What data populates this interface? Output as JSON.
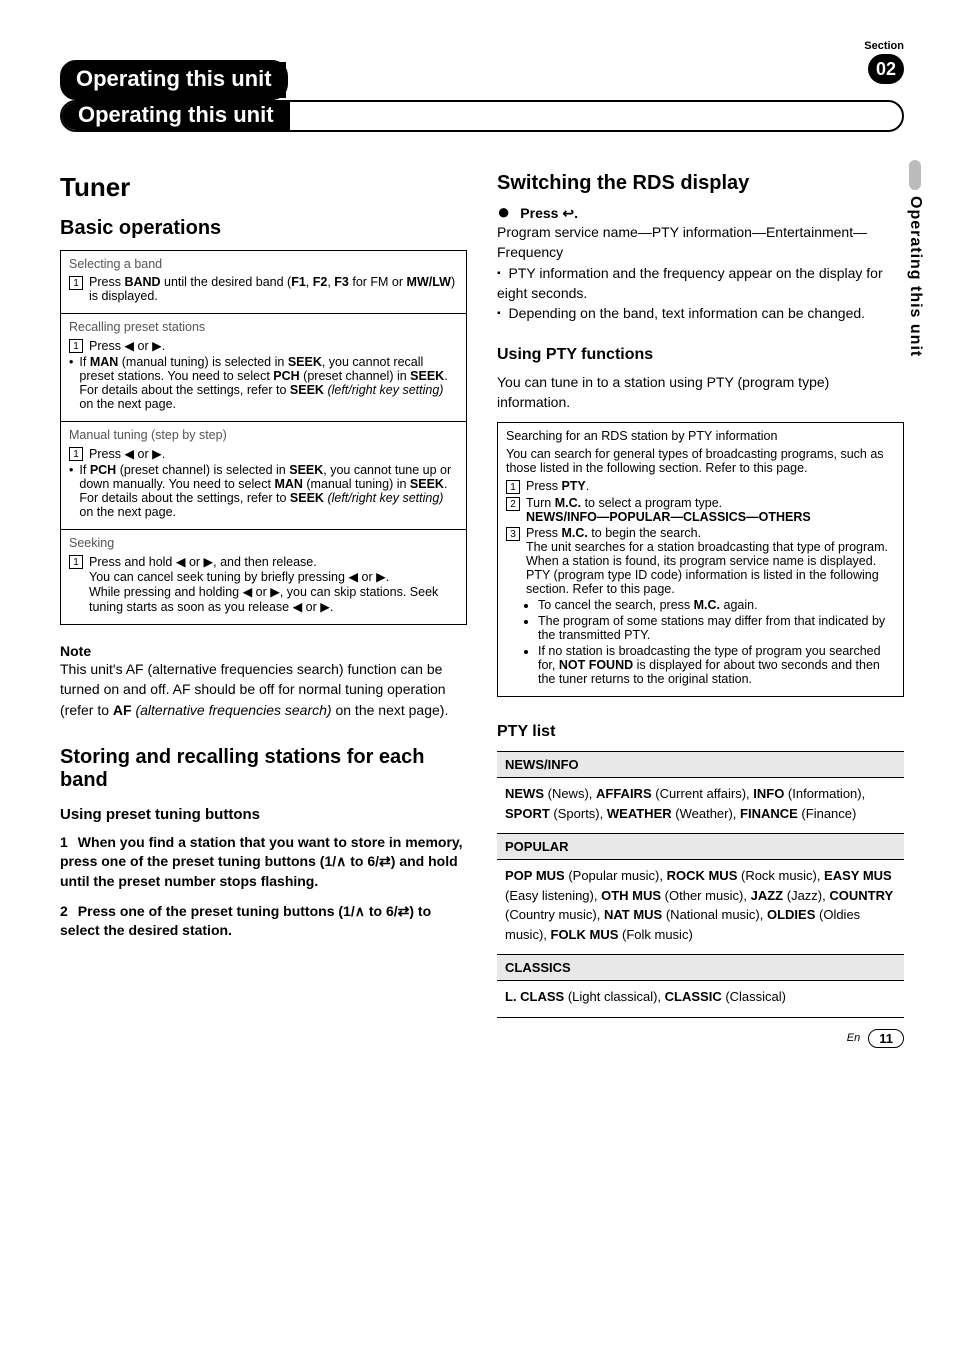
{
  "meta": {
    "section_label": "Section",
    "section_number": "02",
    "chapter_title": "Operating this unit",
    "side_tab": "Operating this unit",
    "page_lang": "En",
    "page_number": "11"
  },
  "left": {
    "h1": "Tuner",
    "h2_basic": "Basic operations",
    "rows": {
      "r1_title": "Selecting a band",
      "r1_step1_a": "Press ",
      "r1_step1_b": "BAND",
      "r1_step1_c": " until the desired band (",
      "r1_step1_d": "F1",
      "r1_step1_e": ", ",
      "r1_step1_f": "F2",
      "r1_step1_g": ", ",
      "r1_step1_h": "F3",
      "r1_step1_i": " for FM or ",
      "r1_step1_j": "MW/LW",
      "r1_step1_k": ") is displayed.",
      "r2_title": "Recalling preset stations",
      "r2_step1": "Press ◀ or ▶.",
      "r2_b1_a": "If ",
      "r2_b1_b": "MAN",
      "r2_b1_c": " (manual tuning) is selected in ",
      "r2_b1_d": "SEEK",
      "r2_b1_e": ", you cannot recall preset stations. You need to select ",
      "r2_b1_f": "PCH",
      "r2_b1_g": " (preset channel) in ",
      "r2_b1_h": "SEEK",
      "r2_b1_i": ". For details about the settings, refer to ",
      "r2_b1_j": "SEEK",
      "r2_b1_k": " (left/right key setting)",
      "r2_b1_l": " on the next page.",
      "r3_title": "Manual tuning (step by step)",
      "r3_step1": "Press ◀ or ▶.",
      "r3_b1_a": "If ",
      "r3_b1_b": "PCH",
      "r3_b1_c": " (preset channel) is selected in ",
      "r3_b1_d": "SEEK",
      "r3_b1_e": ", you cannot tune up or down manually. You need to select ",
      "r3_b1_f": "MAN",
      "r3_b1_g": " (manual tuning) in ",
      "r3_b1_h": "SEEK",
      "r3_b1_i": ". For details about the settings, refer to ",
      "r3_b1_j": "SEEK",
      "r3_b1_k": " (left/right key setting)",
      "r3_b1_l": " on the next page.",
      "r4_title": "Seeking",
      "r4_step1": "Press and hold ◀ or ▶, and then release.",
      "r4_line2": "You can cancel seek tuning by briefly pressing ◀ or ▶.",
      "r4_line3": "While pressing and holding ◀ or ▶, you can skip stations. Seek tuning starts as soon as you release ◀ or ▶."
    },
    "note_label": "Note",
    "note_a": "This unit's AF (alternative frequencies search) function can be turned on and off. AF should be off for normal tuning operation (refer to ",
    "note_b": "AF",
    "note_c": " (alternative frequencies search)",
    "note_d": " on the next page).",
    "h2_store": "Storing and recalling stations for each band",
    "h3_preset": "Using preset tuning buttons",
    "p1_n": "1",
    "p1_a": "When you find a station that you want to store in memory, press one of the preset tuning buttons (1/",
    "p1_b": " to 6/",
    "p1_c": ") and hold until the preset number stops flashing.",
    "p2_n": "2",
    "p2_a": "Press one of the preset tuning buttons (1/",
    "p2_b": " to 6/",
    "p2_c": ") to select the desired station."
  },
  "right": {
    "h2_rds": "Switching the RDS display",
    "act1_a": "Press ",
    "act1_b": ".",
    "line1": "Program service name—PTY information—Entertainment—Frequency",
    "sq1": "PTY information and the frequency appear on the display for eight seconds.",
    "sq2": "Depending on the band, text information can be changed.",
    "h3_pty": "Using PTY functions",
    "pty_intro": "You can tune in to a station using PTY (program type) information.",
    "box_title": "Searching for an RDS station by PTY information",
    "box_l1": "You can search for general types of broadcasting programs, such as those listed in the following section. Refer to this page.",
    "box_s1_a": "Press ",
    "box_s1_b": "PTY",
    "box_s1_c": ".",
    "box_s2_a": "Turn ",
    "box_s2_b": "M.C.",
    "box_s2_c": " to select a program type.",
    "box_s2_line": "NEWS/INFO—POPULAR—CLASSICS—OTHERS",
    "box_s3_a": "Press ",
    "box_s3_b": "M.C.",
    "box_s3_c": " to begin the search.",
    "box_s3_l1": "The unit searches for a station broadcasting that type of program. When a station is found, its program service name is displayed.",
    "box_s3_l2": "PTY (program type ID code) information is listed in the following section. Refer to this page.",
    "box_li1_a": "To cancel the search, press ",
    "box_li1_b": "M.C.",
    "box_li1_c": " again.",
    "box_li2": "The program of some stations may differ from that indicated by the transmitted PTY.",
    "box_li3_a": "If no station is broadcasting the type of program you searched for, ",
    "box_li3_b": "NOT FOUND",
    "box_li3_c": " is displayed for about two seconds and then the tuner returns to the original station.",
    "h3_list": "PTY list",
    "pty_table": {
      "g1_head": "NEWS/INFO",
      "g1_body_parts": [
        "NEWS",
        " (News), ",
        "AFFAIRS",
        " (Current affairs), ",
        "INFO",
        " (Information), ",
        "SPORT",
        " (Sports), ",
        "WEATHER",
        " (Weather), ",
        "FINANCE",
        " (Finance)"
      ],
      "g2_head": "POPULAR",
      "g2_body_parts": [
        "POP MUS",
        " (Popular music), ",
        "ROCK MUS",
        " (Rock music), ",
        "EASY MUS",
        " (Easy listening), ",
        "OTH MUS",
        " (Other music), ",
        "JAZZ",
        " (Jazz), ",
        "COUNTRY",
        " (Country music), ",
        "NAT MUS",
        " (National music), ",
        "OLDIES",
        " (Oldies music), ",
        "FOLK MUS",
        " (Folk music)"
      ],
      "g3_head": "CLASSICS",
      "g3_body_parts": [
        "L. CLASS",
        " (Light classical), ",
        "CLASSIC",
        " (Classical)"
      ]
    }
  }
}
